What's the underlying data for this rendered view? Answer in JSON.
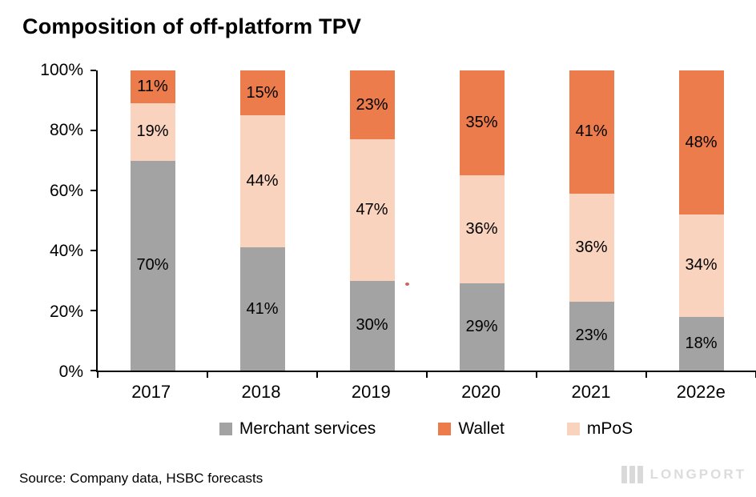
{
  "title": "Composition of off-platform TPV",
  "footer": {
    "source": "Source: Company data, HSBC forecasts",
    "watermark": "LONGPORT"
  },
  "colors": {
    "merchant": "#a3a3a3",
    "wallet": "#ec7c4c",
    "mpos": "#f9d3bd",
    "axis": "#000000"
  },
  "chart_data": {
    "type": "bar",
    "stacked": true,
    "title": "Composition of off-platform TPV",
    "categories": [
      "2017",
      "2018",
      "2019",
      "2020",
      "2021",
      "2022e"
    ],
    "series": [
      {
        "name": "Merchant services",
        "color_key": "merchant",
        "values": [
          70,
          41,
          30,
          29,
          23,
          18
        ]
      },
      {
        "name": "mPoS",
        "color_key": "mpos",
        "values": [
          19,
          44,
          47,
          36,
          36,
          34
        ]
      },
      {
        "name": "Wallet",
        "color_key": "wallet",
        "values": [
          11,
          15,
          23,
          35,
          41,
          48
        ]
      }
    ],
    "stack_order_bottom_to_top": [
      "Merchant services",
      "mPoS",
      "Wallet"
    ],
    "y_ticks": [
      "100%",
      "80%",
      "60%",
      "40%",
      "20%",
      "0%"
    ],
    "ylim": [
      0,
      100
    ],
    "grid": false,
    "legend_position": "bottom",
    "legend": [
      {
        "label": "Merchant services",
        "color_key": "merchant"
      },
      {
        "label": "Wallet",
        "color_key": "wallet"
      },
      {
        "label": "mPoS",
        "color_key": "mpos"
      }
    ]
  }
}
